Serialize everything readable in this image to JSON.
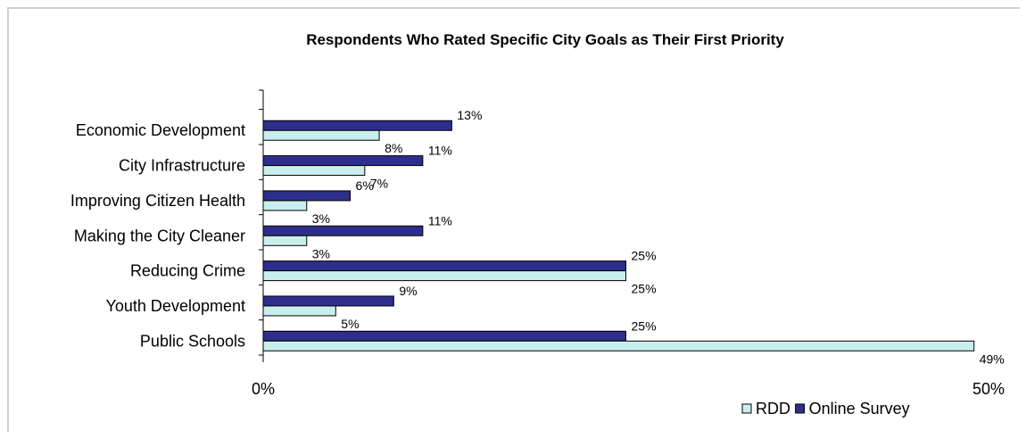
{
  "chart_data": {
    "type": "bar",
    "orientation": "horizontal",
    "title": "Respondents Who Rated Specific City Goals as Their First Priority",
    "categories": [
      "Economic Development",
      "City Infrastructure",
      "Improving Citizen Health",
      "Making the City Cleaner",
      "Reducing Crime",
      "Youth Development",
      "Public Schools"
    ],
    "series": [
      {
        "name": "Online Survey",
        "color": "#2e2e8c",
        "values": [
          13,
          11,
          6,
          11,
          25,
          9,
          25
        ],
        "labels": [
          "13%",
          "11%",
          "6%",
          "11%",
          "25%",
          "9%",
          "25%"
        ]
      },
      {
        "name": "RDD",
        "color": "#c9eeee",
        "values": [
          8,
          7,
          3,
          3,
          25,
          5,
          49
        ],
        "labels": [
          "8%",
          "7%",
          "3%",
          "3%",
          "25%",
          "5%",
          "49%"
        ]
      }
    ],
    "xlim": [
      0,
      50
    ],
    "x_ticks": [
      "0%",
      "50%"
    ],
    "legend": {
      "placement": "bottom-right",
      "order": [
        "RDD",
        "Online Survey"
      ]
    },
    "grid": false
  }
}
